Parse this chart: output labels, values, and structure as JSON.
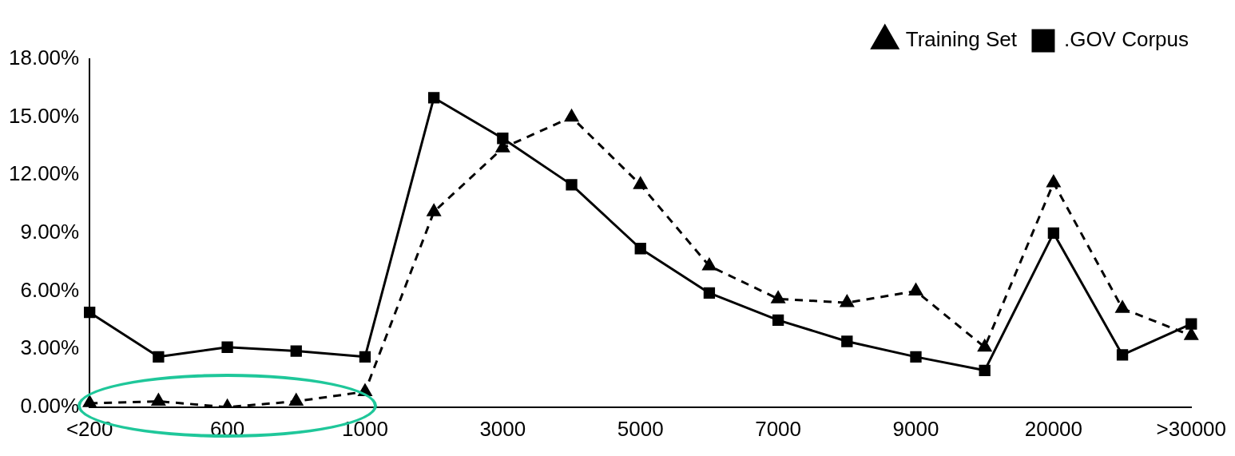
{
  "chart_data": {
    "type": "line",
    "categories": [
      "<200",
      null,
      "600",
      null,
      "1000",
      null,
      "3000",
      null,
      "5000",
      null,
      "7000",
      null,
      "9000",
      null,
      "20000",
      null,
      ">30000"
    ],
    "series": [
      {
        "name": "Training Set",
        "color": "#000000",
        "marker": "triangle",
        "line_style": "dashed",
        "values": [
          0.2,
          0.3,
          0.0,
          0.3,
          0.8,
          10.1,
          13.4,
          15.0,
          11.5,
          7.3,
          5.6,
          5.4,
          6.0,
          3.1,
          11.6,
          5.1,
          3.7
        ]
      },
      {
        "name": ".GOV Corpus",
        "color": "#000000",
        "marker": "square",
        "line_style": "solid",
        "values": [
          4.9,
          2.6,
          3.1,
          2.9,
          2.6,
          16.0,
          13.9,
          11.5,
          8.2,
          5.9,
          4.5,
          3.4,
          2.6,
          1.9,
          9.0,
          2.7,
          4.3
        ]
      }
    ],
    "ylim": [
      0,
      18
    ],
    "yticks": [
      {
        "value": 0,
        "label": "0.00%"
      },
      {
        "value": 3,
        "label": "3.00%"
      },
      {
        "value": 6,
        "label": "6.00%"
      },
      {
        "value": 9,
        "label": "9.00%"
      },
      {
        "value": 12,
        "label": "12.00%"
      },
      {
        "value": 15,
        "label": "15.00%"
      },
      {
        "value": 18,
        "label": "18.00%"
      }
    ],
    "grid": false,
    "legend": "top right"
  }
}
